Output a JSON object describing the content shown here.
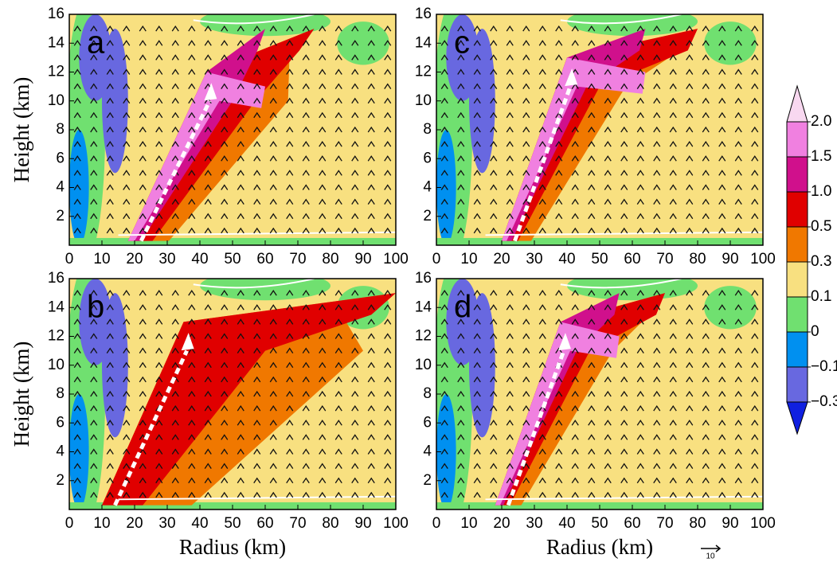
{
  "chart_data": [
    {
      "type": "contour",
      "panel_label": "a",
      "xlim": [
        0,
        100
      ],
      "ylim": [
        0,
        16
      ],
      "xticks": [
        0,
        10,
        20,
        30,
        40,
        50,
        60,
        70,
        80,
        90,
        100
      ],
      "yticks": [
        2,
        4,
        6,
        8,
        10,
        12,
        14,
        16
      ],
      "y_label": "Height (km)"
    },
    {
      "type": "contour",
      "panel_label": "c",
      "xlim": [
        0,
        100
      ],
      "ylim": [
        0,
        16
      ],
      "xticks": [
        0,
        10,
        20,
        30,
        40,
        50,
        60,
        70,
        80,
        90,
        100
      ],
      "yticks": [
        2,
        4,
        6,
        8,
        10,
        12,
        14,
        16
      ]
    },
    {
      "type": "contour",
      "panel_label": "b",
      "xlim": [
        0,
        100
      ],
      "ylim": [
        0,
        16
      ],
      "xticks": [
        0,
        10,
        20,
        30,
        40,
        50,
        60,
        70,
        80,
        90,
        100
      ],
      "yticks": [
        2,
        4,
        6,
        8,
        10,
        12,
        14,
        16
      ],
      "y_label": "Height (km)",
      "x_label": "Radius (km)"
    },
    {
      "type": "contour",
      "panel_label": "d",
      "xlim": [
        0,
        100
      ],
      "ylim": [
        0,
        16
      ],
      "xticks": [
        0,
        10,
        20,
        30,
        40,
        50,
        60,
        70,
        80,
        90,
        100
      ],
      "yticks": [
        2,
        4,
        6,
        8,
        10,
        12,
        14,
        16
      ],
      "x_label": "Radius (km)"
    }
  ],
  "colorbar": {
    "levels": [
      {
        "value": 2,
        "label": "2.0"
      },
      1.5,
      {
        "value": 1,
        "label": "1.0"
      },
      0.5,
      0.3,
      0.1,
      0,
      {
        "value": -0.1,
        "label": "−0.1"
      },
      {
        "value": -0.3,
        "label": "−0.3"
      }
    ],
    "colors": [
      "#f8d8f0",
      "#f080e0",
      "#d0108c",
      "#e00000",
      "#f07800",
      "#f8e080",
      "#70e070",
      "#0090f0",
      "#6868e0",
      "#1020e0"
    ]
  },
  "vector_key": {
    "label": "10"
  }
}
